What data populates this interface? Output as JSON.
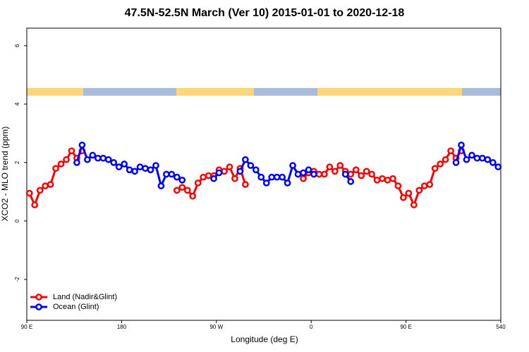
{
  "chart_data": {
    "type": "line",
    "title": "47.5N-52.5N March (Ver 10)   2015-01-01 to 2020-12-18",
    "xlabel": "Longitude (deg E)",
    "ylabel": "XCO2 - MLO trend (ppm)",
    "x": [
      92.5,
      97.5,
      102.5,
      107.5,
      112.5,
      117.5,
      122.5,
      127.5,
      132.5,
      137.5,
      142.5,
      147.5,
      152.5,
      157.5,
      162.5,
      167.5,
      172.5,
      177.5,
      182.5,
      187.5,
      192.5,
      197.5,
      202.5,
      207.5,
      212.5,
      217.5,
      222.5,
      227.5,
      232.5,
      237.5,
      242.5,
      247.5,
      252.5,
      257.5,
      262.5,
      267.5,
      272.5,
      277.5,
      282.5,
      287.5,
      292.5,
      297.5,
      302.5,
      307.5,
      312.5,
      317.5,
      322.5,
      327.5,
      332.5,
      337.5,
      342.5,
      347.5,
      352.5,
      357.5,
      362.5,
      367.5,
      372.5,
      377.5,
      382.5,
      387.5,
      392.5,
      397.5,
      402.5,
      407.5,
      412.5,
      417.5,
      422.5,
      427.5,
      432.5,
      437.5,
      442.5,
      447.5,
      452.5,
      457.5,
      462.5,
      467.5,
      472.5,
      477.5,
      482.5,
      487.5,
      492.5,
      497.5,
      502.5,
      507.5,
      512.5,
      517.5,
      522.5,
      527.5,
      532.5,
      537.5
    ],
    "series": [
      {
        "name": "Land (Nadir&Glint)",
        "color": "#ff0000",
        "values": [
          0.95,
          0.55,
          1.05,
          1.2,
          1.25,
          1.8,
          1.95,
          2.1,
          2.4,
          2.15,
          2.4,
          null,
          null,
          null,
          null,
          null,
          null,
          null,
          null,
          null,
          null,
          null,
          null,
          null,
          null,
          null,
          null,
          null,
          1.05,
          1.15,
          1.05,
          0.85,
          1.3,
          1.5,
          1.55,
          1.55,
          1.75,
          1.7,
          1.85,
          1.45,
          1.8,
          1.25,
          null,
          null,
          null,
          null,
          null,
          null,
          null,
          null,
          null,
          null,
          1.45,
          1.65,
          1.7,
          1.6,
          1.6,
          1.85,
          1.7,
          1.9,
          1.7,
          1.6,
          1.75,
          1.55,
          1.7,
          1.6,
          1.4,
          1.45,
          1.4,
          1.45,
          1.2,
          0.8,
          0.95,
          0.55,
          1.05,
          1.2,
          1.25,
          1.8,
          1.95,
          2.1,
          2.4,
          2.15,
          2.4,
          null,
          null,
          null,
          null,
          null,
          null,
          null
        ]
      },
      {
        "name": "Ocean (Glint)",
        "color": "#0000ff",
        "values": [
          null,
          null,
          null,
          null,
          null,
          null,
          null,
          null,
          null,
          2.0,
          2.6,
          2.1,
          2.25,
          2.15,
          2.15,
          2.1,
          2.0,
          1.85,
          1.95,
          1.75,
          1.7,
          1.85,
          1.8,
          1.75,
          1.9,
          1.2,
          1.6,
          1.6,
          1.5,
          1.4,
          null,
          null,
          null,
          null,
          null,
          1.45,
          1.65,
          null,
          null,
          null,
          1.7,
          2.1,
          1.9,
          1.75,
          1.5,
          1.3,
          1.5,
          1.5,
          1.5,
          1.3,
          1.9,
          1.6,
          1.65,
          1.75,
          1.6,
          null,
          null,
          null,
          null,
          null,
          1.6,
          1.35,
          null,
          null,
          null,
          null,
          null,
          null,
          null,
          null,
          null,
          null,
          null,
          null,
          null,
          null,
          null,
          null,
          null,
          null,
          null,
          2.0,
          2.6,
          2.1,
          2.25,
          2.15,
          2.15,
          2.1,
          2.0,
          1.85
        ]
      }
    ],
    "xlim": [
      90,
      540
    ],
    "xticks": [
      {
        "value": 90,
        "label": "90 E"
      },
      180,
      {
        "value": 270,
        "label": "90 W"
      },
      {
        "value": 360,
        "label": "0"
      },
      {
        "value": 450,
        "label": "90 E"
      },
      540
    ],
    "ylim": [
      -3.4,
      6.6
    ],
    "yticks": [
      -2,
      0,
      2,
      4,
      6
    ],
    "legend": "lower left"
  }
}
